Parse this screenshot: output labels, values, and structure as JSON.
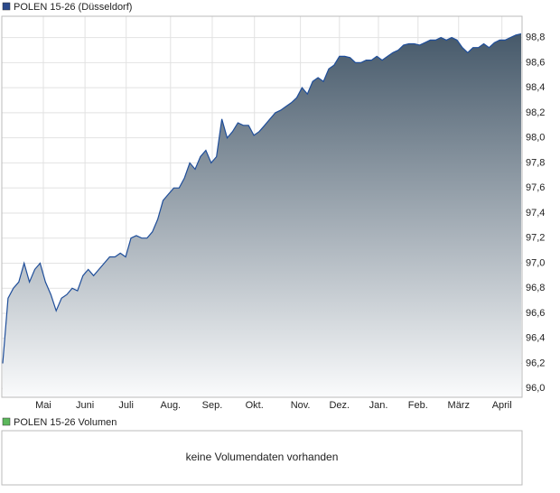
{
  "chart_data": {
    "type": "area",
    "legend": "POLEN 15-26 (Düsseldorf)",
    "color": "#1f4e9a",
    "legend_color": "#2b4a8b",
    "values": [
      96.2,
      96.72,
      96.8,
      96.85,
      97.0,
      96.85,
      96.95,
      97.0,
      96.85,
      96.75,
      96.62,
      96.72,
      96.75,
      96.8,
      96.78,
      96.9,
      96.95,
      96.9,
      96.95,
      97.0,
      97.05,
      97.05,
      97.08,
      97.05,
      97.2,
      97.22,
      97.2,
      97.2,
      97.25,
      97.35,
      97.5,
      97.55,
      97.6,
      97.6,
      97.68,
      97.8,
      97.75,
      97.85,
      97.9,
      97.8,
      97.85,
      98.15,
      98.0,
      98.05,
      98.12,
      98.1,
      98.1,
      98.02,
      98.05,
      98.1,
      98.15,
      98.2,
      98.22,
      98.25,
      98.28,
      98.32,
      98.4,
      98.35,
      98.45,
      98.48,
      98.45,
      98.55,
      98.58,
      98.65,
      98.65,
      98.64,
      98.6,
      98.6,
      98.62,
      98.62,
      98.65,
      98.62,
      98.65,
      98.68,
      98.7,
      98.74,
      98.75,
      98.75,
      98.74,
      98.76,
      98.78,
      98.78,
      98.8,
      98.78,
      98.8,
      98.78,
      98.72,
      98.68,
      98.72,
      98.72,
      98.75,
      98.72,
      98.76,
      98.78,
      98.78,
      98.8,
      98.82,
      98.83
    ],
    "xlim": [
      0,
      97
    ],
    "xticks": [
      {
        "value": 7.6,
        "label": "Mai"
      },
      {
        "value": 15.4,
        "label": "Juni"
      },
      {
        "value": 23.1,
        "label": "Juli"
      },
      {
        "value": 31.4,
        "label": "Aug."
      },
      {
        "value": 39.2,
        "label": "Sep."
      },
      {
        "value": 47.1,
        "label": "Okt."
      },
      {
        "value": 55.7,
        "label": "Nov."
      },
      {
        "value": 63.0,
        "label": "Dez."
      },
      {
        "value": 70.3,
        "label": "Jan."
      },
      {
        "value": 77.7,
        "label": "Feb."
      },
      {
        "value": 85.3,
        "label": "März"
      },
      {
        "value": 93.4,
        "label": "April"
      }
    ],
    "ylim": [
      95.93,
      98.97
    ],
    "yticks": [
      {
        "value": 96.0,
        "label": "96,0"
      },
      {
        "value": 96.2,
        "label": "96,2"
      },
      {
        "value": 96.4,
        "label": "96,4"
      },
      {
        "value": 96.6,
        "label": "96,6"
      },
      {
        "value": 96.8,
        "label": "96,8"
      },
      {
        "value": 97.0,
        "label": "97,0"
      },
      {
        "value": 97.2,
        "label": "97,2"
      },
      {
        "value": 97.4,
        "label": "97,4"
      },
      {
        "value": 97.6,
        "label": "97,6"
      },
      {
        "value": 97.8,
        "label": "97,8"
      },
      {
        "value": 98.0,
        "label": "98,0"
      },
      {
        "value": 98.2,
        "label": "98,2"
      },
      {
        "value": 98.4,
        "label": "98,4"
      },
      {
        "value": 98.6,
        "label": "98,6"
      },
      {
        "value": 98.8,
        "label": "98,8"
      }
    ],
    "grid": true
  },
  "volume_panel": {
    "legend": "POLEN 15-26 Volumen",
    "legend_color": "#5cb85c",
    "message": "keine Volumendaten vorhanden"
  }
}
